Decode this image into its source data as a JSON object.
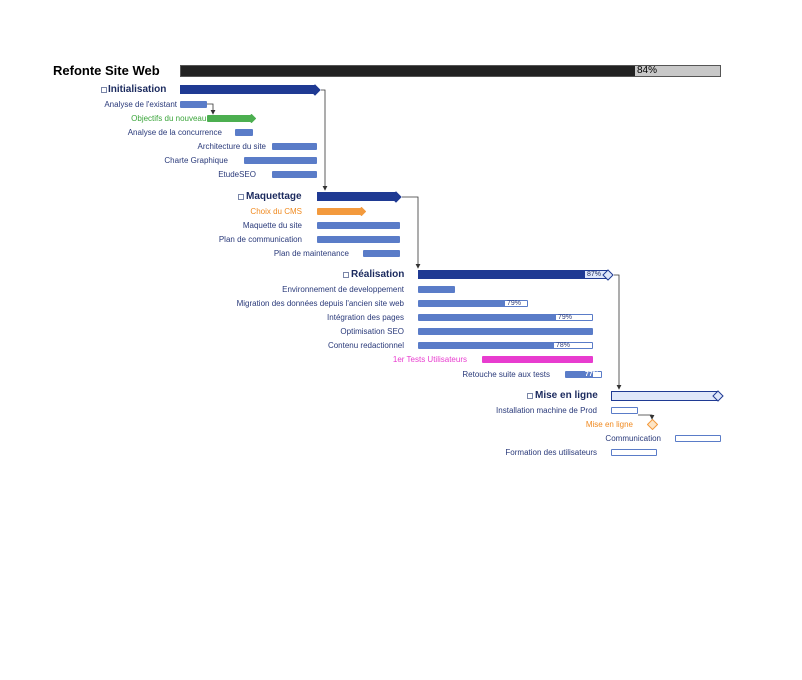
{
  "project": {
    "title": "Refonte Site Web",
    "progress": 84,
    "progress_label": "84%"
  },
  "colors": {
    "dark_bar": "#222222",
    "dark_bar_remainder": "#c8c8c8",
    "phase_bar": "#1f3a93",
    "task_bar": "#5a7cc8",
    "task_text": "#2a3a7a",
    "green": "#4caf50",
    "orange": "#f39a3d",
    "magenta": "#e83ccf",
    "light_bar": "#dfe7fa",
    "connector": "#333333"
  },
  "phases": [
    {
      "key": "init",
      "label": "Initialisation",
      "collapse": "⊟"
    },
    {
      "key": "maq",
      "label": "Maquettage",
      "collapse": "⊟"
    },
    {
      "key": "real",
      "label": "Réalisation",
      "collapse": "⊟",
      "progress_label": "87%"
    },
    {
      "key": "mel",
      "label": "Mise en ligne",
      "collapse": "⊟"
    }
  ],
  "tasks": {
    "analyse_existant": {
      "label": "Analyse de l'existant"
    },
    "objectifs": {
      "label": "Objectifs du nouveau site"
    },
    "concurrence": {
      "label": "Analyse de la concurrence"
    },
    "architecture": {
      "label": "Architecture du site"
    },
    "charte": {
      "label": "Charte Graphique"
    },
    "seo": {
      "label": "EtudeSEO"
    },
    "cms": {
      "label": "Choix du CMS"
    },
    "maquette": {
      "label": "Maquette du site"
    },
    "plan_comm": {
      "label": "Plan de communication"
    },
    "plan_maint": {
      "label": "Plan de maintenance"
    },
    "env_dev": {
      "label": "Environnement de developpement"
    },
    "migration": {
      "label": "Migration des données depuis l'ancien site web",
      "progress_label": "79%"
    },
    "integration": {
      "label": "Intégration des pages",
      "progress_label": "79%"
    },
    "optim_seo": {
      "label": "Optimisation SEO"
    },
    "contenu": {
      "label": "Contenu redactionnel",
      "progress_label": "78%"
    },
    "tests": {
      "label": "1er Tests Utilisateurs"
    },
    "retouche": {
      "label": "Retouche suite aux tests",
      "progress_label": "77%"
    },
    "install": {
      "label": "Installation machine de Prod"
    },
    "milestone": {
      "label": "Mise en ligne"
    },
    "communication": {
      "label": "Communication"
    },
    "formation": {
      "label": "Formation des utilisateurs"
    }
  }
}
